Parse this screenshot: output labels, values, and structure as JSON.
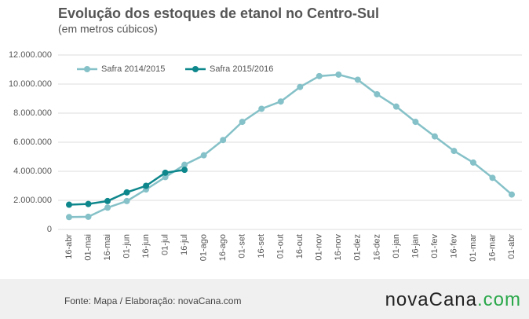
{
  "chart_data": {
    "type": "line",
    "title": "Evolução dos estoques de etanol no Centro-Sul",
    "subtitle": "(em metros cúbicos)",
    "categories": [
      "16-abr",
      "01-mai",
      "16-mai",
      "01-jun",
      "16-jun",
      "01-jul",
      "16-jul",
      "01-ago",
      "16-ago",
      "01-set",
      "16-set",
      "01-out",
      "16-out",
      "01-nov",
      "16-nov",
      "01-dez",
      "16-dez",
      "01-jan",
      "16-jan",
      "01-fev",
      "16-fev",
      "01-mar",
      "16-mar",
      "01-abr"
    ],
    "series": [
      {
        "name": "Safra 2014/2015",
        "color": "#85c1c8",
        "values": [
          850000,
          870000,
          1500000,
          1950000,
          2750000,
          3600000,
          4450000,
          5100000,
          6150000,
          7400000,
          8300000,
          8800000,
          9800000,
          10550000,
          10650000,
          10300000,
          9300000,
          8450000,
          7400000,
          6400000,
          5400000,
          4600000,
          3550000,
          2400000
        ]
      },
      {
        "name": "Safra 2015/2016",
        "color": "#0e878c",
        "values": [
          1700000,
          1750000,
          1950000,
          2550000,
          3000000,
          3900000,
          4100000,
          null,
          null,
          null,
          null,
          null,
          null,
          null,
          null,
          null,
          null,
          null,
          null,
          null,
          null,
          null,
          null,
          null
        ]
      }
    ],
    "ylim": [
      0,
      12000000
    ],
    "yticks": [
      0,
      {
        "value": 2000000,
        "label": "2.000.000"
      },
      {
        "value": 4000000,
        "label": "4.000.000"
      },
      {
        "value": 6000000,
        "label": "6.000.000"
      },
      {
        "value": 8000000,
        "label": "8.000.000"
      },
      {
        "value": 10000000,
        "label": "10.000.000"
      },
      {
        "value": 12000000,
        "label": "12.000.000"
      }
    ],
    "grid": true,
    "legend": "top-left"
  },
  "footer": {
    "source": "Fonte: Mapa / Elaboração: novaCana.com",
    "logo": [
      "novaCana",
      ".com"
    ]
  }
}
